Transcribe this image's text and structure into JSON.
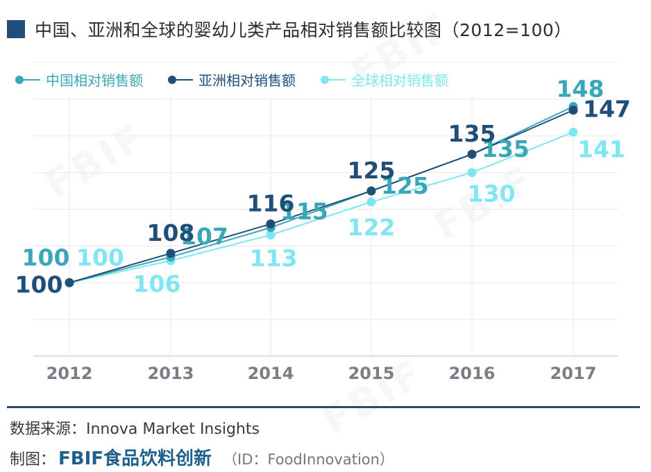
{
  "header": {
    "title": "中国、亚洲和全球的婴幼儿类产品相对销售额比较图（2012=100）"
  },
  "colors": {
    "title_square": "#1f4e79",
    "china": "#3aa7b8",
    "asia": "#1f4e79",
    "global": "#7fe6f2"
  },
  "chart_data": {
    "type": "line",
    "title": "中国、亚洲和全球的婴幼儿类产品相对销售额比较图（2012=100）",
    "categories": [
      "2012",
      "2013",
      "2014",
      "2015",
      "2016",
      "2017"
    ],
    "series": [
      {
        "name": "中国相对销售额",
        "values": [
          100,
          107,
          115,
          125,
          135,
          148
        ],
        "color": "#3aa7b8"
      },
      {
        "name": "亚洲相对销售额",
        "values": [
          100,
          108,
          116,
          125,
          135,
          147
        ],
        "color": "#1f4e79"
      },
      {
        "name": "全球相对销售额",
        "values": [
          100,
          106,
          113,
          122,
          130,
          141
        ],
        "color": "#7fe6f2"
      }
    ],
    "ylim": [
      80,
      160
    ],
    "grid": true,
    "legend": "top-left"
  },
  "footer": {
    "source": "数据来源：Innova Market Insights",
    "credit_prefix": "制图：",
    "brand": "FBIF食品饮料创新",
    "handle": "（ID：FoodInnovation）"
  }
}
